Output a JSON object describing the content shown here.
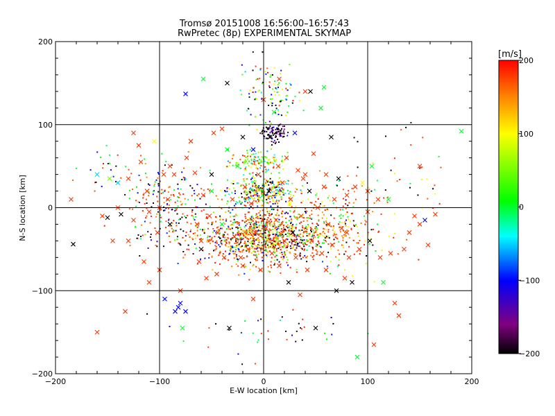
{
  "chart_data": {
    "type": "scatter",
    "title": "Tromsø 20151008 16:56:00–16:57:43",
    "subtitle": "RwPretec (8p) EXPERIMENTAL SKYMAP",
    "xlabel": "E-W location [km]",
    "ylabel": "N-S location [km]",
    "xlim": [
      -200,
      200
    ],
    "ylim": [
      -200,
      200
    ],
    "x_ticks": [
      -200,
      -100,
      0,
      100,
      200
    ],
    "y_ticks": [
      -200,
      -100,
      0,
      100,
      200
    ],
    "grid": true,
    "colorbar": {
      "label": "[m/s]",
      "range": [
        -200,
        200
      ],
      "ticks": [
        200,
        100,
        0,
        -100,
        -200
      ],
      "colormap": [
        "#000000",
        "#800080",
        "#0000ff",
        "#00ffff",
        "#00ff00",
        "#ffff00",
        "#ff8000",
        "#ff0000"
      ]
    },
    "series": [
      {
        "marker": "x",
        "points": [
          [
            -185,
            10,
            180
          ],
          [
            -183,
            -44,
            -200
          ],
          [
            -160,
            40,
            -50
          ],
          [
            -155,
            -10,
            180
          ],
          [
            -150,
            -12,
            -200
          ],
          [
            -148,
            35,
            50
          ],
          [
            -145,
            -40,
            180
          ],
          [
            -140,
            30,
            -50
          ],
          [
            -137,
            -8,
            -200
          ],
          [
            -133,
            -125,
            180
          ],
          [
            -130,
            35,
            180
          ],
          [
            -125,
            90,
            180
          ],
          [
            -120,
            75,
            180
          ],
          [
            -118,
            55,
            180
          ],
          [
            -115,
            -65,
            180
          ],
          [
            -112,
            20,
            180
          ],
          [
            -110,
            -90,
            180
          ],
          [
            -110,
            -5,
            180
          ],
          [
            -105,
            80,
            100
          ],
          [
            -102,
            -30,
            180
          ],
          [
            -100,
            -75,
            180
          ],
          [
            -96,
            40,
            180
          ],
          [
            -95,
            -110,
            -100
          ],
          [
            -92,
            10,
            180
          ],
          [
            -90,
            -20,
            -200
          ],
          [
            -86,
            40,
            180
          ],
          [
            -85,
            -125,
            -100
          ],
          [
            -82,
            -120,
            -100
          ],
          [
            -80,
            -115,
            -100
          ],
          [
            -78,
            -145,
            0
          ],
          [
            -75,
            -125,
            -100
          ],
          [
            -74,
            60,
            180
          ],
          [
            -70,
            80,
            180
          ],
          [
            -66,
            42,
            180
          ],
          [
            -64,
            -20,
            180
          ],
          [
            -62,
            -65,
            180
          ],
          [
            -60,
            -40,
            180
          ],
          [
            -58,
            15,
            180
          ],
          [
            -55,
            -85,
            180
          ],
          [
            -52,
            -10,
            180
          ],
          [
            -50,
            40,
            -200
          ],
          [
            -48,
            90,
            180
          ],
          [
            -45,
            -80,
            180
          ],
          [
            -44,
            -30,
            180
          ],
          [
            -40,
            95,
            180
          ],
          [
            -38,
            -60,
            180
          ],
          [
            -35,
            70,
            0
          ],
          [
            -33,
            -145,
            -200
          ],
          [
            -30,
            10,
            180
          ],
          [
            -28,
            -35,
            180
          ],
          [
            -25,
            50,
            0
          ],
          [
            -22,
            -60,
            180
          ],
          [
            -20,
            85,
            -200
          ],
          [
            -18,
            25,
            180
          ],
          [
            -15,
            -50,
            180
          ],
          [
            -12,
            5,
            180
          ],
          [
            -10,
            70,
            -100
          ],
          [
            -8,
            -30,
            180
          ],
          [
            -5,
            40,
            180
          ],
          [
            -3,
            -75,
            180
          ],
          [
            0,
            130,
            180
          ],
          [
            2,
            -25,
            180
          ],
          [
            5,
            20,
            -200
          ],
          [
            6,
            85,
            -200
          ],
          [
            8,
            -55,
            180
          ],
          [
            10,
            115,
            0
          ],
          [
            12,
            -15,
            180
          ],
          [
            14,
            50,
            180
          ],
          [
            15,
            -70,
            180
          ],
          [
            18,
            30,
            180
          ],
          [
            20,
            -40,
            180
          ],
          [
            22,
            60,
            180
          ],
          [
            24,
            -90,
            -200
          ],
          [
            26,
            10,
            180
          ],
          [
            28,
            -30,
            -200
          ],
          [
            30,
            90,
            -100
          ],
          [
            31,
            -60,
            180
          ],
          [
            33,
            45,
            180
          ],
          [
            35,
            -105,
            180
          ],
          [
            36,
            -10,
            180
          ],
          [
            38,
            35,
            180
          ],
          [
            40,
            140,
            180
          ],
          [
            42,
            -75,
            180
          ],
          [
            44,
            20,
            -200
          ],
          [
            46,
            -40,
            180
          ],
          [
            48,
            65,
            180
          ],
          [
            50,
            -145,
            -200
          ],
          [
            52,
            0,
            180
          ],
          [
            55,
            120,
            0
          ],
          [
            56,
            -55,
            180
          ],
          [
            58,
            25,
            180
          ],
          [
            60,
            -75,
            180
          ],
          [
            62,
            -20,
            180
          ],
          [
            65,
            85,
            -200
          ],
          [
            66,
            -45,
            180
          ],
          [
            68,
            10,
            180
          ],
          [
            70,
            -100,
            -200
          ],
          [
            72,
            35,
            -200
          ],
          [
            75,
            -25,
            180
          ],
          [
            78,
            -85,
            180
          ],
          [
            80,
            15,
            180
          ],
          [
            82,
            -60,
            180
          ],
          [
            85,
            -90,
            -200
          ],
          [
            88,
            25,
            180
          ],
          [
            90,
            -180,
            0
          ],
          [
            92,
            -50,
            180
          ],
          [
            95,
            30,
            100
          ],
          [
            100,
            -5,
            180
          ],
          [
            102,
            -40,
            -200
          ],
          [
            104,
            50,
            0
          ],
          [
            106,
            -165,
            180
          ],
          [
            110,
            10,
            180
          ],
          [
            112,
            -60,
            180
          ],
          [
            115,
            -90,
            0
          ],
          [
            120,
            10,
            0
          ],
          [
            122,
            -55,
            180
          ],
          [
            126,
            -115,
            180
          ],
          [
            130,
            -130,
            180
          ],
          [
            135,
            -50,
            180
          ],
          [
            140,
            -30,
            180
          ],
          [
            145,
            -10,
            180
          ],
          [
            150,
            -20,
            180
          ],
          [
            155,
            -15,
            -100
          ],
          [
            158,
            -45,
            180
          ],
          [
            165,
            -8,
            180
          ],
          [
            190,
            92,
            0
          ],
          [
            -75,
            137,
            -100
          ],
          [
            -58,
            155,
            0
          ],
          [
            -35,
            150,
            -200
          ],
          [
            15,
            155,
            180
          ],
          [
            45,
            140,
            -200
          ],
          [
            58,
            145,
            0
          ],
          [
            -100,
            0,
            180
          ],
          [
            -80,
            -100,
            180
          ],
          [
            -10,
            -110,
            180
          ],
          [
            -130,
            -40,
            180
          ],
          [
            -160,
            -150,
            180
          ],
          [
            150,
            50,
            180
          ],
          [
            -140,
            0,
            180
          ],
          [
            -125,
            -15,
            180
          ],
          [
            -90,
            50,
            180
          ],
          [
            -60,
            -50,
            -200
          ],
          [
            -20,
            -70,
            180
          ],
          [
            40,
            40,
            180
          ],
          [
            60,
            40,
            180
          ],
          [
            80,
            -30,
            180
          ],
          [
            100,
            20,
            180
          ],
          [
            -50,
            20,
            0
          ],
          [
            -40,
            -20,
            0
          ],
          [
            25,
            5,
            100
          ]
        ]
      },
      {
        "marker": "dot",
        "clusters": [
          {
            "center": [
              10,
              90
            ],
            "spread": [
              12,
              10
            ],
            "count": 90,
            "values": [
              -200,
              -200,
              -200,
              -150,
              -100
            ]
          },
          {
            "center": [
              -5,
              55
            ],
            "spread": [
              25,
              12
            ],
            "count": 140,
            "values": [
              0,
              40,
              60,
              -50,
              100,
              180
            ]
          },
          {
            "center": [
              -3,
              20
            ],
            "spread": [
              30,
              15
            ],
            "count": 320,
            "values": [
              0,
              -50,
              60,
              100,
              180,
              -100,
              -200,
              150
            ]
          },
          {
            "center": [
              0,
              -35
            ],
            "spread": [
              55,
              30
            ],
            "count": 1100,
            "values": [
              180,
              180,
              180,
              180,
              150,
              120,
              0,
              -200,
              50,
              -100
            ]
          },
          {
            "center": [
              5,
              140
            ],
            "spread": [
              25,
              35
            ],
            "count": 110,
            "values": [
              0,
              40,
              -100,
              -200,
              180,
              100,
              -50
            ]
          },
          {
            "center": [
              -90,
              0
            ],
            "spread": [
              40,
              45
            ],
            "count": 220,
            "values": [
              180,
              180,
              150,
              -200,
              0,
              -100
            ]
          },
          {
            "center": [
              70,
              -20
            ],
            "spread": [
              45,
              45
            ],
            "count": 240,
            "values": [
              180,
              180,
              150,
              -200,
              0,
              100
            ]
          },
          {
            "center": [
              0,
              -150
            ],
            "spread": [
              90,
              25
            ],
            "count": 40,
            "values": [
              180,
              0,
              -200,
              -100
            ]
          },
          {
            "center": [
              -150,
              50
            ],
            "spread": [
              30,
              30
            ],
            "count": 25,
            "values": [
              180,
              0,
              -100,
              -200
            ]
          },
          {
            "center": [
              140,
              40
            ],
            "spread": [
              40,
              60
            ],
            "count": 30,
            "values": [
              180,
              0,
              100,
              -200
            ]
          }
        ]
      }
    ]
  }
}
